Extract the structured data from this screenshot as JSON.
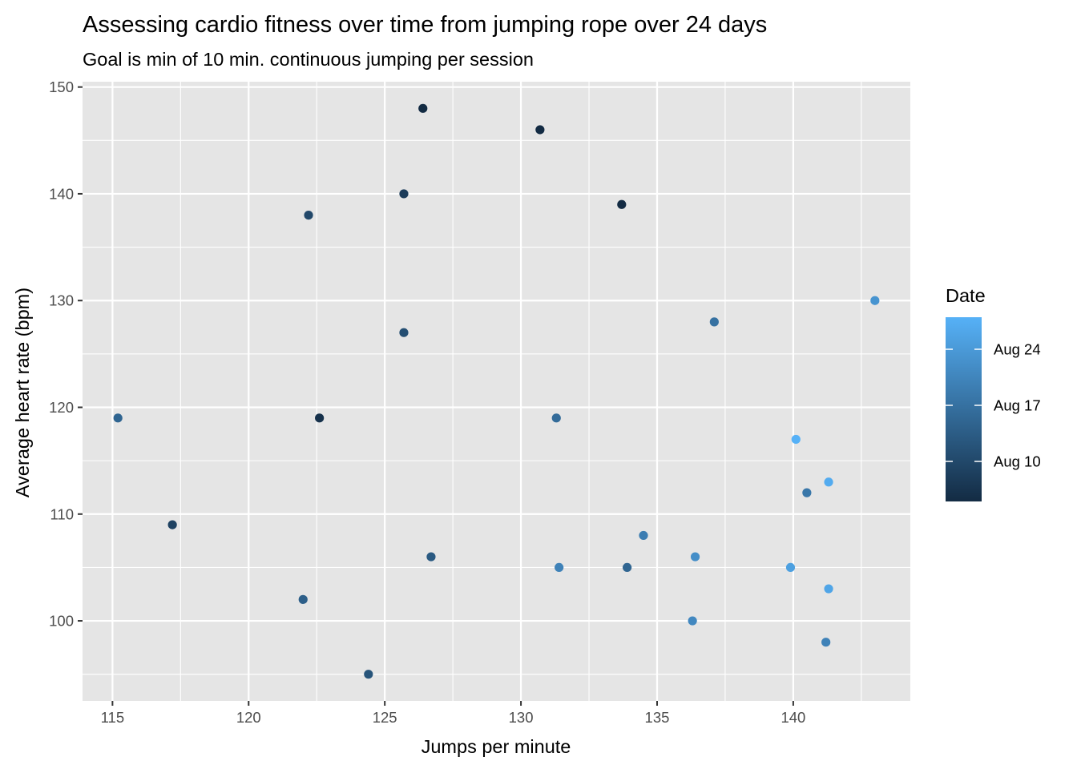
{
  "chart_data": {
    "type": "scatter",
    "title": "Assessing cardio fitness over time from jumping rope over 24 days",
    "subtitle": "Goal is min of 10 min. continuous jumping per session",
    "xlabel": "Jumps per minute",
    "ylabel": "Average heart rate (bpm)",
    "xlim": [
      113.9,
      144.3
    ],
    "ylim": [
      92.5,
      150.5
    ],
    "x_ticks": [
      115,
      120,
      125,
      130,
      135,
      140
    ],
    "y_ticks": [
      100,
      110,
      120,
      130,
      140,
      150
    ],
    "x_tick_labels": [
      "115",
      "120",
      "125",
      "130",
      "135",
      "140"
    ],
    "y_tick_labels": [
      "100",
      "110",
      "120",
      "130",
      "140",
      "150"
    ],
    "grid": true,
    "panel_background": "#e5e5e5",
    "grid_color": "#ffffff",
    "legend": {
      "title": "Date",
      "placement": "right",
      "color_low": "#132b43",
      "color_high": "#56b1f7",
      "date_range": [
        "2024-08-05",
        "2024-08-28"
      ],
      "breaks": [
        "2024-08-10",
        "2024-08-17",
        "2024-08-24"
      ],
      "break_labels": [
        "Aug 10",
        "Aug 17",
        "Aug 24"
      ]
    },
    "points": [
      {
        "x": 126.4,
        "y": 148,
        "date": "2024-08-05"
      },
      {
        "x": 130.7,
        "y": 146,
        "date": "2024-08-05"
      },
      {
        "x": 133.7,
        "y": 139,
        "date": "2024-08-05"
      },
      {
        "x": 122.6,
        "y": 119,
        "date": "2024-08-06"
      },
      {
        "x": 125.7,
        "y": 140,
        "date": "2024-08-08"
      },
      {
        "x": 117.2,
        "y": 109,
        "date": "2024-08-09"
      },
      {
        "x": 122.2,
        "y": 138,
        "date": "2024-08-10"
      },
      {
        "x": 125.7,
        "y": 127,
        "date": "2024-08-11"
      },
      {
        "x": 124.4,
        "y": 95,
        "date": "2024-08-12"
      },
      {
        "x": 126.7,
        "y": 106,
        "date": "2024-08-13"
      },
      {
        "x": 122.0,
        "y": 102,
        "date": "2024-08-14"
      },
      {
        "x": 115.2,
        "y": 119,
        "date": "2024-08-15"
      },
      {
        "x": 133.9,
        "y": 105,
        "date": "2024-08-15"
      },
      {
        "x": 131.3,
        "y": 119,
        "date": "2024-08-16"
      },
      {
        "x": 137.1,
        "y": 128,
        "date": "2024-08-17"
      },
      {
        "x": 140.5,
        "y": 112,
        "date": "2024-08-18"
      },
      {
        "x": 134.5,
        "y": 108,
        "date": "2024-08-19"
      },
      {
        "x": 131.4,
        "y": 105,
        "date": "2024-08-20"
      },
      {
        "x": 141.2,
        "y": 98,
        "date": "2024-08-20"
      },
      {
        "x": 136.3,
        "y": 100,
        "date": "2024-08-21"
      },
      {
        "x": 136.4,
        "y": 106,
        "date": "2024-08-22"
      },
      {
        "x": 143.0,
        "y": 130,
        "date": "2024-08-23"
      },
      {
        "x": 139.9,
        "y": 105,
        "date": "2024-08-25"
      },
      {
        "x": 141.3,
        "y": 103,
        "date": "2024-08-26"
      },
      {
        "x": 141.3,
        "y": 113,
        "date": "2024-08-27"
      },
      {
        "x": 140.1,
        "y": 117,
        "date": "2024-08-28"
      }
    ]
  }
}
